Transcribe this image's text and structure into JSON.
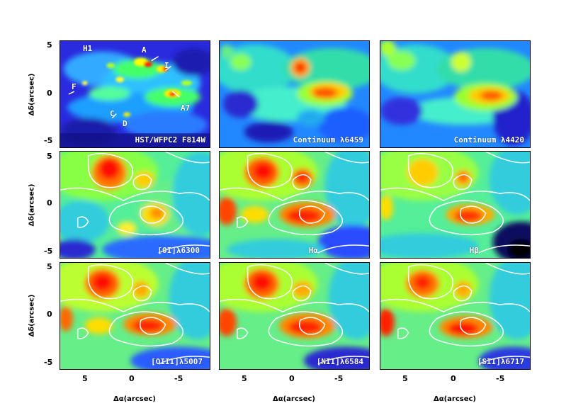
{
  "axes": {
    "x_label": "Δα(arcsec)",
    "y_label": "Δδ(arcsec)",
    "x_ticks": [
      "5",
      "0",
      "-5"
    ],
    "y_ticks": [
      "5",
      "0",
      "-5"
    ]
  },
  "panels": [
    {
      "label": "HST/WFPC2 F814W",
      "annotations": [
        "H1",
        "A",
        "I",
        "F",
        "A7",
        "C",
        "D"
      ]
    },
    {
      "label": "Continuum λ6459",
      "annotations": []
    },
    {
      "label": "Continuum λ4420",
      "annotations": []
    },
    {
      "label": "[OI]λ6300",
      "annotations": []
    },
    {
      "label": "Hα",
      "annotations": []
    },
    {
      "label": "Hβ",
      "annotations": []
    },
    {
      "label": "[OIII]λ5007",
      "annotations": []
    },
    {
      "label": "[NII]λ6584",
      "annotations": []
    },
    {
      "label": "[SII]λ6717",
      "annotations": []
    }
  ]
}
